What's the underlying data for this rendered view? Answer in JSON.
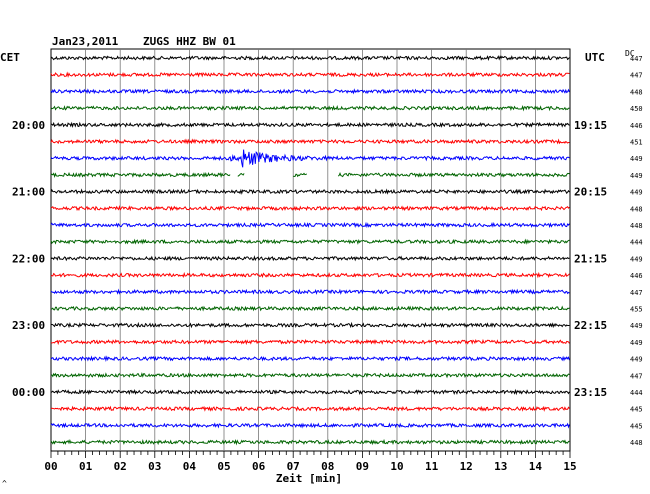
{
  "header": {
    "date": "Jan23,2011",
    "station": "ZUGS HHZ BW 01",
    "left_tz": "CET",
    "right_tz": "UTC",
    "dc_label": "DC",
    "xlabel": "Zeit [min]",
    "corner_mark": "^"
  },
  "chart_data": {
    "type": "line",
    "title": "Jan23,2011   ZUGS HHZ BW 01",
    "xlabel": "Zeit [min]",
    "xlim": [
      0,
      15
    ],
    "x_ticks": [
      "00",
      "01",
      "02",
      "03",
      "04",
      "05",
      "06",
      "07",
      "08",
      "09",
      "10",
      "11",
      "12",
      "13",
      "14",
      "15"
    ],
    "trace_count": 24,
    "trace_colors": [
      "#000000",
      "#ff0000",
      "#0000ff",
      "#006400"
    ],
    "left_hour_labels": [
      {
        "trace": 4,
        "label": "20:00"
      },
      {
        "trace": 8,
        "label": "21:00"
      },
      {
        "trace": 12,
        "label": "22:00"
      },
      {
        "trace": 16,
        "label": "23:00"
      },
      {
        "trace": 20,
        "label": "00:00"
      }
    ],
    "right_hour_labels": [
      {
        "trace": 4,
        "label": "19:15"
      },
      {
        "trace": 8,
        "label": "20:15"
      },
      {
        "trace": 12,
        "label": "21:15"
      },
      {
        "trace": 16,
        "label": "22:15"
      },
      {
        "trace": 20,
        "label": "23:15"
      }
    ],
    "dc_values": [
      "447",
      "447",
      "448",
      "450",
      "446",
      "451",
      "449",
      "449",
      "449",
      "448",
      "448",
      "444",
      "449",
      "446",
      "447",
      "455",
      "449",
      "449",
      "449",
      "447",
      "444",
      "445",
      "445",
      "448"
    ],
    "event": {
      "trace": 6,
      "start_min": 5.2,
      "end_min": 8.5,
      "onset_min": 5.5
    },
    "data_gap": {
      "trace": 7,
      "segments": [
        [
          5.6,
          7.0
        ],
        [
          7.4,
          8.3
        ]
      ]
    },
    "grid": true
  }
}
